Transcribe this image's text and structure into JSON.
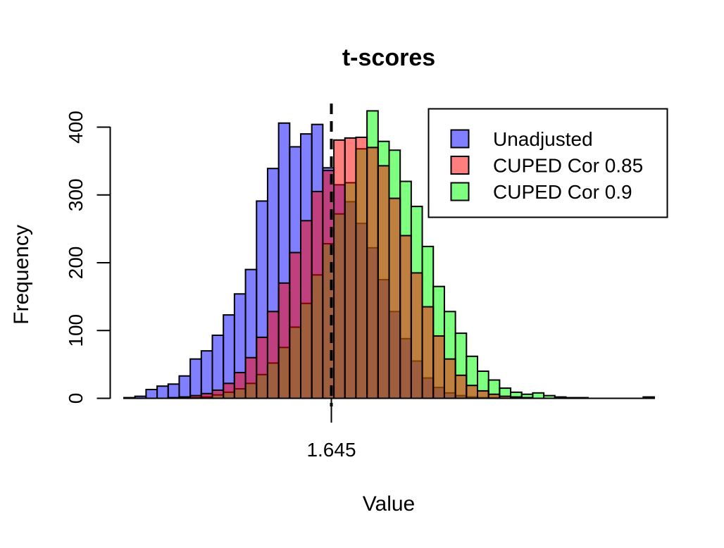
{
  "title": "t-scores",
  "chart_data": {
    "type": "histogram",
    "title": "t-scores",
    "xlabel": "Value",
    "ylabel": "Frequency",
    "y_ticks": [
      0,
      100,
      200,
      300,
      400
    ],
    "ylim": [
      0,
      424
    ],
    "x_axis_tick_labels": [
      "1.645"
    ],
    "vline": {
      "value": 1.645,
      "label": "1.645",
      "style": "dashed",
      "color": "#000000"
    },
    "bin_count": 48,
    "bin_width_value": 0.25,
    "grid": false,
    "legend_position": "top-right",
    "background": "#ffffff",
    "bar_border_color": "#000000",
    "fill_opacity": 0.5,
    "draw_order": [
      0,
      2,
      1
    ],
    "series": [
      {
        "name": "Unadjusted",
        "color": "#0000FF",
        "blended_on_white": "#8080FF",
        "counts": [
          1,
          3,
          13,
          18,
          21,
          33,
          58,
          70,
          93,
          123,
          154,
          190,
          291,
          339,
          406,
          371,
          390,
          404,
          340,
          315,
          290,
          258,
          222,
          175,
          128,
          88,
          55,
          30,
          16,
          8,
          4,
          2,
          1,
          1,
          0,
          0,
          0,
          0,
          0,
          0,
          0,
          0,
          0,
          0,
          0,
          0,
          0,
          0
        ]
      },
      {
        "name": "CUPED Cor 0.85",
        "color": "#FF0000",
        "blended_on_white": "#FF8080",
        "counts": [
          0,
          0,
          0,
          0,
          1,
          2,
          4,
          7,
          12,
          22,
          38,
          60,
          90,
          128,
          170,
          215,
          262,
          305,
          336,
          381,
          384,
          385,
          370,
          343,
          295,
          240,
          185,
          135,
          92,
          58,
          34,
          19,
          11,
          6,
          3,
          2,
          1,
          0,
          0,
          0,
          0,
          0,
          0,
          0,
          0,
          0,
          0,
          0
        ]
      },
      {
        "name": "CUPED Cor 0.9",
        "color": "#00FF00",
        "blended_on_white": "#80FF80",
        "counts": [
          0,
          0,
          0,
          0,
          0,
          0,
          1,
          2,
          5,
          9,
          14,
          22,
          35,
          52,
          75,
          105,
          140,
          182,
          228,
          272,
          318,
          368,
          424,
          379,
          366,
          320,
          283,
          224,
          165,
          128,
          96,
          62,
          40,
          27,
          15,
          9,
          6,
          8,
          4,
          2,
          1,
          1,
          0,
          0,
          0,
          0,
          0,
          2
        ]
      }
    ]
  }
}
